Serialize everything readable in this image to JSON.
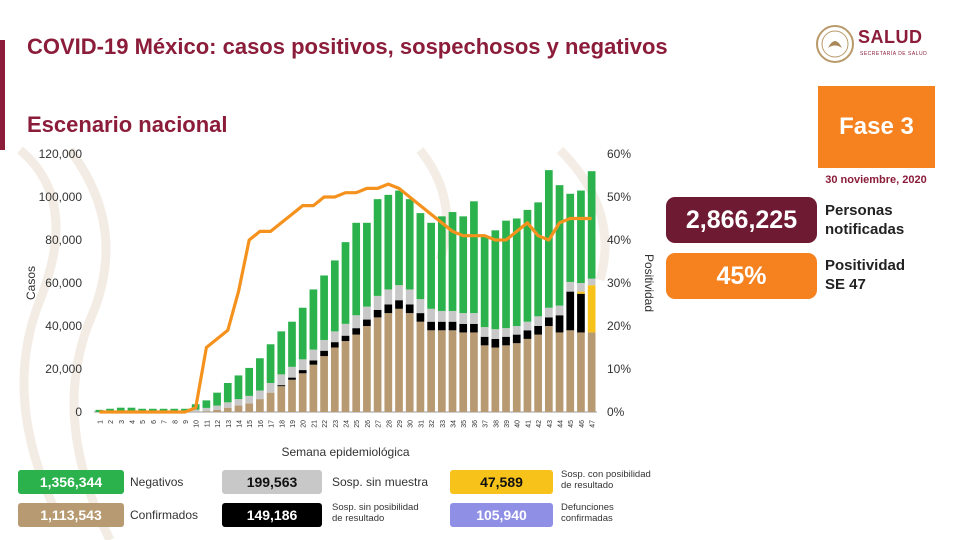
{
  "header": {
    "title": "COVID-19 México: casos positivos, sospechosos y negativos",
    "subtitle": "Escenario nacional"
  },
  "logo": {
    "word": "SALUD",
    "sub": "SECRETARÍA DE SALUD"
  },
  "phase_badge": "Fase 3",
  "date": "30 noviembre, 2020",
  "stats": {
    "notified_value": "2,866,225",
    "notified_label": "Personas\nnotificadas",
    "positivity_value": "45%",
    "positivity_label": "Positividad\nSE 47"
  },
  "legend": [
    {
      "key": "negativos",
      "value": "1,356,344",
      "label": "Negativos",
      "color": "#2bb24c"
    },
    {
      "key": "sosp_sin_muestra",
      "value": "199,563",
      "label": "Sosp. sin muestra",
      "color": "#c8c8c8"
    },
    {
      "key": "sosp_con_posibilidad",
      "value": "47,589",
      "label": "Sosp. con posibilidad\nde resultado",
      "color": "#f7c31a"
    },
    {
      "key": "confirmados",
      "value": "1,113,543",
      "label": "Confirmados",
      "color": "#b79a72"
    },
    {
      "key": "sosp_sin_posibilidad",
      "value": "149,186",
      "label": "Sosp. sin posibilidad\nde resultado",
      "color": "#000000"
    },
    {
      "key": "defunciones",
      "value": "105,940",
      "label": "Defunciones\nconfirmadas",
      "color": "#8f8fe6"
    }
  ],
  "chart_data": {
    "type": "bar",
    "stacked": true,
    "xlabel": "Semana epidemiológica",
    "ylabel": "Casos",
    "y2label": "Positividad",
    "ylim": [
      0,
      120000
    ],
    "y2lim": [
      0,
      60
    ],
    "yticks": [
      "0",
      "20,000",
      "40,000",
      "60,000",
      "80,000",
      "100,000",
      "120,000"
    ],
    "y2ticks": [
      "0%",
      "10%",
      "20%",
      "30%",
      "40%",
      "50%",
      "60%"
    ],
    "categories": [
      "1",
      "2",
      "3",
      "4",
      "5",
      "6",
      "7",
      "8",
      "9",
      "10",
      "11",
      "12",
      "13",
      "14",
      "15",
      "16",
      "17",
      "18",
      "19",
      "20",
      "21",
      "22",
      "23",
      "24",
      "25",
      "26",
      "27",
      "28",
      "29",
      "30",
      "31",
      "32",
      "33",
      "34",
      "35",
      "36",
      "37",
      "38",
      "39",
      "40",
      "41",
      "42",
      "43",
      "44",
      "45",
      "46",
      "47"
    ],
    "series": [
      {
        "name": "Confirmados",
        "color": "#b79a72",
        "values": [
          0,
          0,
          0,
          0,
          0,
          0,
          0,
          0,
          0,
          100,
          400,
          1000,
          2000,
          3000,
          4000,
          6000,
          9000,
          12000,
          15000,
          18000,
          22000,
          26000,
          30000,
          33000,
          36000,
          40000,
          44000,
          46000,
          48000,
          46000,
          42000,
          38000,
          38000,
          38000,
          37000,
          37000,
          31000,
          30000,
          31000,
          32000,
          34000,
          36000,
          40000,
          37000,
          38000,
          37000,
          37000
        ]
      },
      {
        "name": "Sosp. sin posibilidad de resultado",
        "color": "#000000",
        "values": [
          0,
          0,
          0,
          0,
          0,
          0,
          0,
          0,
          0,
          0,
          0,
          0,
          0,
          0,
          0,
          0,
          0,
          500,
          1000,
          1500,
          2000,
          2500,
          2500,
          2500,
          3000,
          3000,
          3500,
          4000,
          4000,
          4000,
          4000,
          4000,
          4000,
          4000,
          4000,
          4000,
          4000,
          4000,
          4000,
          4000,
          4000,
          4000,
          4000,
          8000,
          18000,
          18000,
          0
        ]
      },
      {
        "name": "Sosp. con posibilidad de resultado",
        "color": "#f7c31a",
        "values": [
          0,
          0,
          0,
          0,
          0,
          0,
          0,
          0,
          0,
          0,
          0,
          0,
          0,
          0,
          0,
          0,
          0,
          0,
          0,
          0,
          0,
          0,
          0,
          0,
          0,
          0,
          0,
          0,
          0,
          0,
          0,
          0,
          0,
          0,
          0,
          0,
          0,
          0,
          0,
          0,
          0,
          0,
          0,
          0,
          0,
          1000,
          22000
        ]
      },
      {
        "name": "Sosp. sin muestra",
        "color": "#c8c8c8",
        "values": [
          0,
          0,
          0,
          0,
          0,
          0,
          0,
          0,
          0,
          1000,
          1500,
          2000,
          2500,
          3000,
          3500,
          4000,
          4500,
          5000,
          5000,
          5000,
          5000,
          5000,
          5000,
          5500,
          6000,
          6000,
          6500,
          7000,
          7000,
          7000,
          6500,
          6000,
          5000,
          5000,
          5000,
          5000,
          4500,
          4500,
          4000,
          4000,
          4000,
          4500,
          4500,
          4500,
          4500,
          4000,
          3000
        ]
      },
      {
        "name": "Negativos",
        "color": "#2bb24c",
        "values": [
          1000,
          1500,
          2000,
          2000,
          1500,
          1500,
          1500,
          1500,
          1500,
          2500,
          3500,
          6000,
          9000,
          11000,
          13000,
          15000,
          18000,
          20000,
          21000,
          24000,
          28000,
          30000,
          33000,
          38000,
          43000,
          39000,
          45000,
          44000,
          44000,
          42000,
          40000,
          40000,
          44000,
          46000,
          45000,
          52000,
          42000,
          46000,
          50000,
          50000,
          52000,
          53000,
          64000,
          56000,
          41000,
          43000,
          50000
        ]
      }
    ],
    "line": {
      "name": "Positividad",
      "color": "#f5921e",
      "values": [
        0,
        0,
        0,
        0,
        0,
        0,
        0,
        0,
        0,
        1,
        15,
        17,
        19,
        28,
        40,
        42,
        42,
        44,
        46,
        48,
        48,
        50,
        50,
        51,
        51,
        52,
        52,
        53,
        52,
        50,
        48,
        46,
        44,
        42,
        41,
        41,
        41,
        40,
        40,
        42,
        44,
        41,
        40,
        44,
        45,
        45,
        45
      ]
    }
  }
}
